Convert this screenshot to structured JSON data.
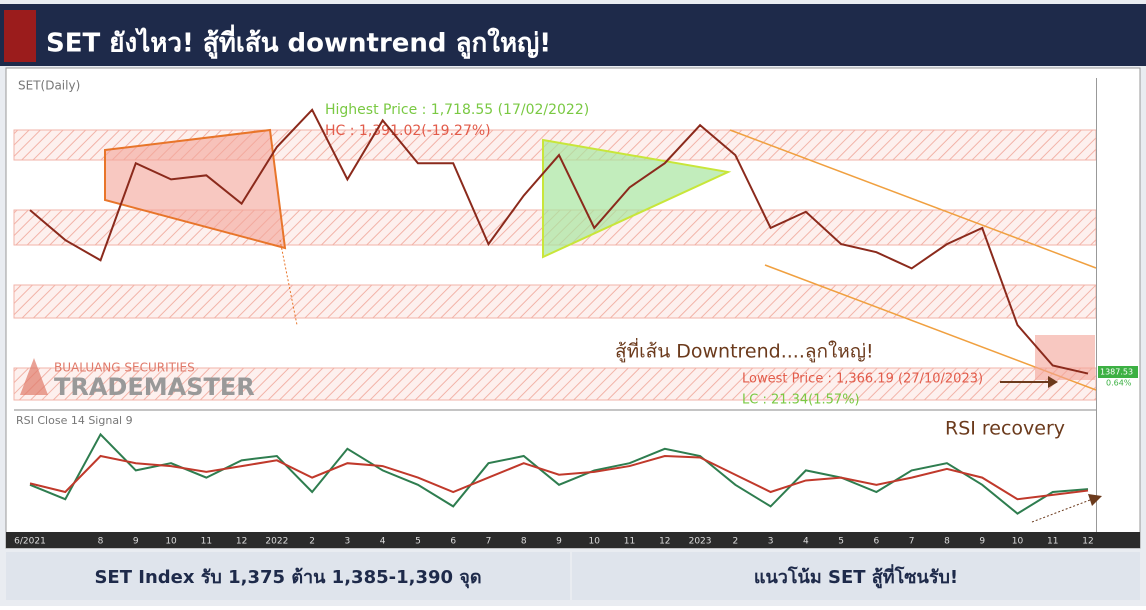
{
  "header": {
    "title": "SET ยังไหว! สู้ที่เส้น downtrend ลูกใหญ่!"
  },
  "logo": {
    "company": "BUALUANG SECURITIES",
    "brand": "TRADEMASTER"
  },
  "footer": {
    "left": "SET Index รับ 1,375 ต้าน 1,385-1,390 จุด",
    "right": "แนวโน้ม SET สู้ที่โซนรับ!"
  },
  "chart_data": [
    {
      "type": "line",
      "title": "SET(Daily)",
      "categories": [
        "6/2021",
        null,
        "8",
        "9",
        "10",
        "11",
        "12",
        "2022",
        "2",
        "3",
        "4",
        "5",
        "6",
        "7",
        "8",
        "9",
        "10",
        "11",
        "12",
        "2023",
        "2",
        "3",
        "4",
        "5",
        "6",
        "7",
        "8",
        "9",
        "10",
        "11",
        "12"
      ],
      "series": [
        {
          "name": "SET",
          "color": "#8b2a1c",
          "values": [
            1582,
            1545,
            1520,
            1640,
            1620,
            1625,
            1590,
            1660,
            1706,
            1620,
            1693,
            1640,
            1640,
            1540,
            1600,
            1650,
            1560,
            1610,
            1640,
            1687,
            1650,
            1560,
            1580,
            1540,
            1530,
            1510,
            1540,
            1560,
            1440,
            1390,
            1380
          ]
        }
      ],
      "ylim": [
        1335,
        1749
      ],
      "annotations": [
        "Highest Price : 1,718.55 (17/02/2022)",
        "HC : 1,391.02(-19.27%)",
        "Lowest Price : 1,366.19 (27/10/2023)",
        "LC : 21.34(1.57%)",
        "สู้ที่เส้น Downtrend....ลูกใหญ่!",
        "1387.53",
        "0.64%"
      ]
    },
    {
      "type": "line",
      "title": "RSI Close 14 Signal 9",
      "series": [
        {
          "name": "RSI",
          "color": "#2e7d4f",
          "values": [
            45,
            35,
            80,
            55,
            60,
            50,
            62,
            65,
            40,
            70,
            55,
            45,
            30,
            60,
            65,
            45,
            55,
            60,
            70,
            65,
            45,
            30,
            55,
            50,
            40,
            55,
            60,
            45,
            25,
            40,
            42
          ]
        },
        {
          "name": "Signal",
          "color": "#c0392b",
          "values": [
            46,
            40,
            65,
            60,
            58,
            54,
            58,
            62,
            50,
            60,
            58,
            50,
            40,
            50,
            60,
            52,
            54,
            58,
            65,
            64,
            52,
            40,
            48,
            50,
            45,
            50,
            56,
            50,
            35,
            38,
            41
          ]
        }
      ],
      "ylim": [
        15,
        90
      ],
      "annotations": [
        "RSI recovery"
      ]
    }
  ]
}
